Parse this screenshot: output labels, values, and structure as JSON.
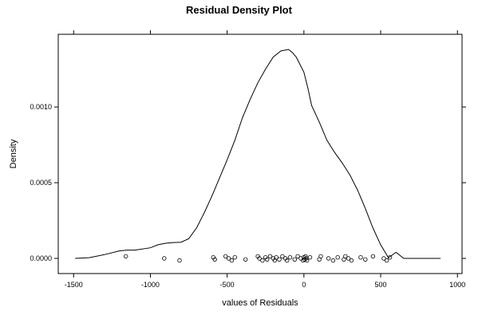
{
  "chart_data": {
    "type": "line",
    "title": "Residual Density Plot",
    "xlabel": "values of Residuals",
    "ylabel": "Density",
    "xlim": [
      -1600,
      1030
    ],
    "ylim": [
      -0.0001,
      0.00148
    ],
    "x_ticks": [
      -1500,
      -1000,
      -500,
      0,
      500,
      1000
    ],
    "x_tick_labels": [
      "-1500",
      "-1000",
      "-500",
      "0",
      "500",
      "1000"
    ],
    "y_ticks": [
      0.0,
      0.0005,
      0.001
    ],
    "y_tick_labels": [
      "0.0000",
      "0.0005",
      "0.0010"
    ],
    "grid": false,
    "legend": "none",
    "series": [
      {
        "type": "line",
        "x": [
          -1490,
          -1400,
          -1300,
          -1200,
          -1150,
          -1100,
          -1000,
          -950,
          -900,
          -850,
          -800,
          -750,
          -700,
          -650,
          -600,
          -550,
          -500,
          -450,
          -400,
          -350,
          -300,
          -250,
          -200,
          -150,
          -100,
          -75,
          -50,
          -25,
          0,
          25,
          50,
          100,
          150,
          200,
          250,
          300,
          350,
          400,
          450,
          500,
          550,
          600,
          650,
          700,
          750,
          800,
          850,
          890
        ],
        "y": [
          0.0,
          5e-06,
          2.5e-05,
          5e-05,
          5.5e-05,
          5.5e-05,
          7e-05,
          9e-05,
          0.0001,
          0.000105,
          0.000107,
          0.00013,
          0.0002,
          0.0003,
          0.00041,
          0.00053,
          0.00065,
          0.00078,
          0.00093,
          0.00105,
          0.00116,
          0.00125,
          0.00133,
          0.00137,
          0.00138,
          0.00136,
          0.00133,
          0.00128,
          0.00123,
          0.00113,
          0.00101,
          0.0009,
          0.00078,
          0.0007,
          0.00063,
          0.00055,
          0.00045,
          0.00033,
          0.0002,
          9e-05,
          5e-06,
          4e-05,
          0.0,
          0.0,
          0.0,
          0.0,
          0.0,
          0.0
        ]
      },
      {
        "type": "rug",
        "values": [
          -1160,
          -910,
          -810,
          -590,
          -580,
          -510,
          -490,
          -470,
          -450,
          -380,
          -300,
          -290,
          -270,
          -250,
          -240,
          -220,
          -200,
          -190,
          -180,
          -160,
          -140,
          -120,
          -110,
          -90,
          -60,
          -40,
          -20,
          -5,
          0,
          5,
          10,
          15,
          20,
          40,
          100,
          110,
          160,
          190,
          220,
          260,
          270,
          290,
          310,
          370,
          400,
          450,
          520,
          540,
          560
        ]
      }
    ]
  }
}
